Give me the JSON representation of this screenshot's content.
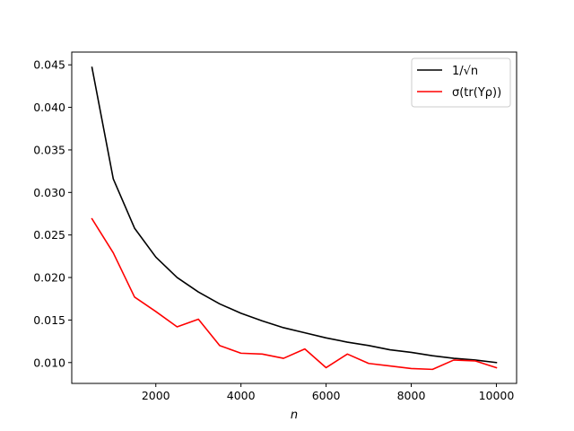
{
  "chart_data": {
    "type": "line",
    "title": "",
    "xlabel": "n",
    "ylabel": "",
    "xlim": [
      25,
      10475
    ],
    "ylim": [
      0.00755,
      0.0465
    ],
    "xticks": [
      2000,
      4000,
      6000,
      8000,
      10000
    ],
    "xtick_labels": [
      "2000",
      "4000",
      "6000",
      "8000",
      "10000"
    ],
    "yticks": [
      0.01,
      0.015,
      0.02,
      0.025,
      0.03,
      0.035,
      0.04,
      0.045
    ],
    "ytick_labels": [
      "0.010",
      "0.015",
      "0.020",
      "0.025",
      "0.030",
      "0.035",
      "0.040",
      "0.045"
    ],
    "grid": false,
    "legend_position": "top-right",
    "x": [
      500,
      1000,
      1500,
      2000,
      2500,
      3000,
      3500,
      4000,
      4500,
      5000,
      5500,
      6000,
      6500,
      7000,
      7500,
      8000,
      8500,
      9000,
      9500,
      10000
    ],
    "series": [
      {
        "name": "1/√n",
        "color": "#000000",
        "values": [
          0.0447,
          0.0316,
          0.0258,
          0.0224,
          0.02,
          0.0183,
          0.0169,
          0.0158,
          0.0149,
          0.0141,
          0.0135,
          0.0129,
          0.0124,
          0.012,
          0.0115,
          0.0112,
          0.0108,
          0.0105,
          0.0103,
          0.01
        ]
      },
      {
        "name": "σ(tr(Yρ))",
        "color": "#ff0000",
        "values": [
          0.0269,
          0.0229,
          0.0177,
          0.016,
          0.0142,
          0.0151,
          0.012,
          0.0111,
          0.011,
          0.0105,
          0.0116,
          0.0094,
          0.011,
          0.0099,
          0.0096,
          0.0093,
          0.0092,
          0.0103,
          0.0102,
          0.0094
        ]
      }
    ]
  }
}
